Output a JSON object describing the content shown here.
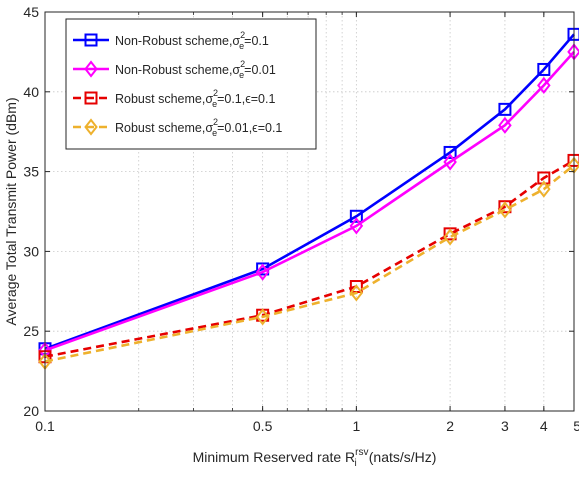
{
  "chart_data": {
    "type": "line",
    "xlabel": "Minimum Reserved rate R",
    "xlabel_sub": "i",
    "xlabel_sup": "rsv",
    "xlabel_unit": "(nats/s/Hz)",
    "ylabel": "Average Total Transmit Power (dBm)",
    "x_scale": "log",
    "xlim": [
      0.1,
      5
    ],
    "ylim": [
      20,
      45
    ],
    "x_ticks": [
      0.1,
      0.5,
      1,
      2,
      3,
      4,
      5
    ],
    "x_tick_labels": [
      "0.1",
      "0.5",
      "1",
      "2",
      "3",
      "4",
      "5"
    ],
    "y_ticks": [
      20,
      25,
      30,
      35,
      40,
      45
    ],
    "y_tick_labels": [
      "20",
      "25",
      "30",
      "35",
      "40",
      "45"
    ],
    "grid": true,
    "legend_position": "top-left",
    "x": [
      0.1,
      0.5,
      1,
      2,
      3,
      4,
      5
    ],
    "series": [
      {
        "name": "Non-Robust scheme,σe2=0.1",
        "legend": {
          "prefix": "Non-Robust scheme,σ",
          "sup": "2",
          "sub": "e",
          "suffix": "=0.1"
        },
        "color": "#0000ff",
        "line_style": "solid",
        "marker": "square",
        "values": [
          23.9,
          28.9,
          32.2,
          36.2,
          38.9,
          41.4,
          43.6
        ]
      },
      {
        "name": "Non-Robust scheme,σe2=0.01",
        "legend": {
          "prefix": "Non-Robust scheme,σ",
          "sup": "2",
          "sub": "e",
          "suffix": "=0.01"
        },
        "color": "#ff00ff",
        "line_style": "solid",
        "marker": "diamond",
        "values": [
          23.8,
          28.7,
          31.6,
          35.6,
          37.9,
          40.4,
          42.5
        ]
      },
      {
        "name": "Robust scheme,σe2=0.1,ε=0.1",
        "legend": {
          "prefix": "Robust scheme,σ",
          "sup": "2",
          "sub": "e",
          "suffix": "=0.1,ϵ=0.1"
        },
        "color": "#e60000",
        "line_style": "dashed",
        "marker": "square",
        "values": [
          23.4,
          26.0,
          27.8,
          31.1,
          32.8,
          34.6,
          35.7
        ]
      },
      {
        "name": "Robust scheme,σe2=0.01,ε=0.1",
        "legend": {
          "prefix": "Robust scheme,σ",
          "sup": "2",
          "sub": "e",
          "suffix": "=0.01,ϵ=0.1"
        },
        "color": "#eeb12d",
        "line_style": "dashed",
        "marker": "diamond",
        "values": [
          23.1,
          25.9,
          27.4,
          30.9,
          32.6,
          33.9,
          35.4
        ]
      }
    ]
  }
}
